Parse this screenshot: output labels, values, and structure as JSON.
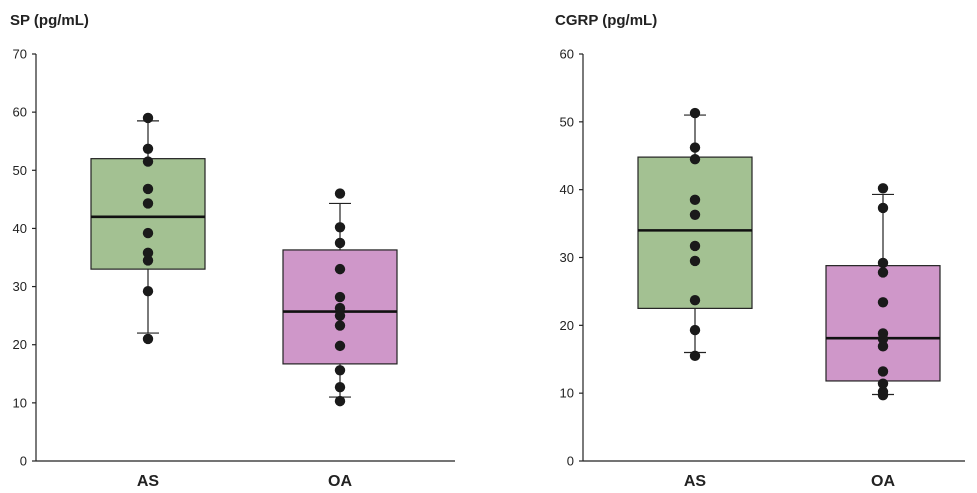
{
  "chart_data": [
    {
      "type": "box",
      "title": "SP (pg/mL)",
      "categories": [
        "AS",
        "OA"
      ],
      "ylim": [
        0,
        70
      ],
      "yticks": [
        0,
        10,
        20,
        30,
        40,
        50,
        60,
        70
      ],
      "grid": false,
      "boxes": [
        {
          "category": "AS",
          "color": "#a3c192",
          "q1": 33,
          "median": 42,
          "q3": 52,
          "whisker_low": 22,
          "whisker_high": 58.5,
          "points": [
            59,
            53.7,
            51.5,
            46.8,
            44.3,
            39.2,
            35.8,
            34.5,
            29.2,
            21
          ]
        },
        {
          "category": "OA",
          "color": "#cf97c9",
          "q1": 16.7,
          "median": 25.7,
          "q3": 36.3,
          "whisker_low": 11,
          "whisker_high": 44.3,
          "points": [
            46,
            40.2,
            37.5,
            33,
            28.2,
            26.3,
            25,
            23.3,
            19.8,
            15.6,
            12.7,
            10.3
          ]
        }
      ]
    },
    {
      "type": "box",
      "title": "CGRP (pg/mL)",
      "categories": [
        "AS",
        "OA"
      ],
      "ylim": [
        0,
        60
      ],
      "yticks": [
        0,
        10,
        20,
        30,
        40,
        50,
        60
      ],
      "grid": false,
      "boxes": [
        {
          "category": "AS",
          "color": "#a3c192",
          "q1": 22.5,
          "median": 34,
          "q3": 44.8,
          "whisker_low": 16,
          "whisker_high": 51,
          "points": [
            51.3,
            46.2,
            44.5,
            38.5,
            36.3,
            31.7,
            29.5,
            23.7,
            19.3,
            15.5
          ]
        },
        {
          "category": "OA",
          "color": "#cf97c9",
          "q1": 11.8,
          "median": 18.1,
          "q3": 28.8,
          "whisker_low": 9.8,
          "whisker_high": 39.3,
          "points": [
            40.2,
            37.3,
            29.2,
            27.8,
            23.4,
            18.8,
            18,
            16.9,
            13.2,
            11.4,
            10.2,
            9.7
          ]
        }
      ]
    }
  ]
}
